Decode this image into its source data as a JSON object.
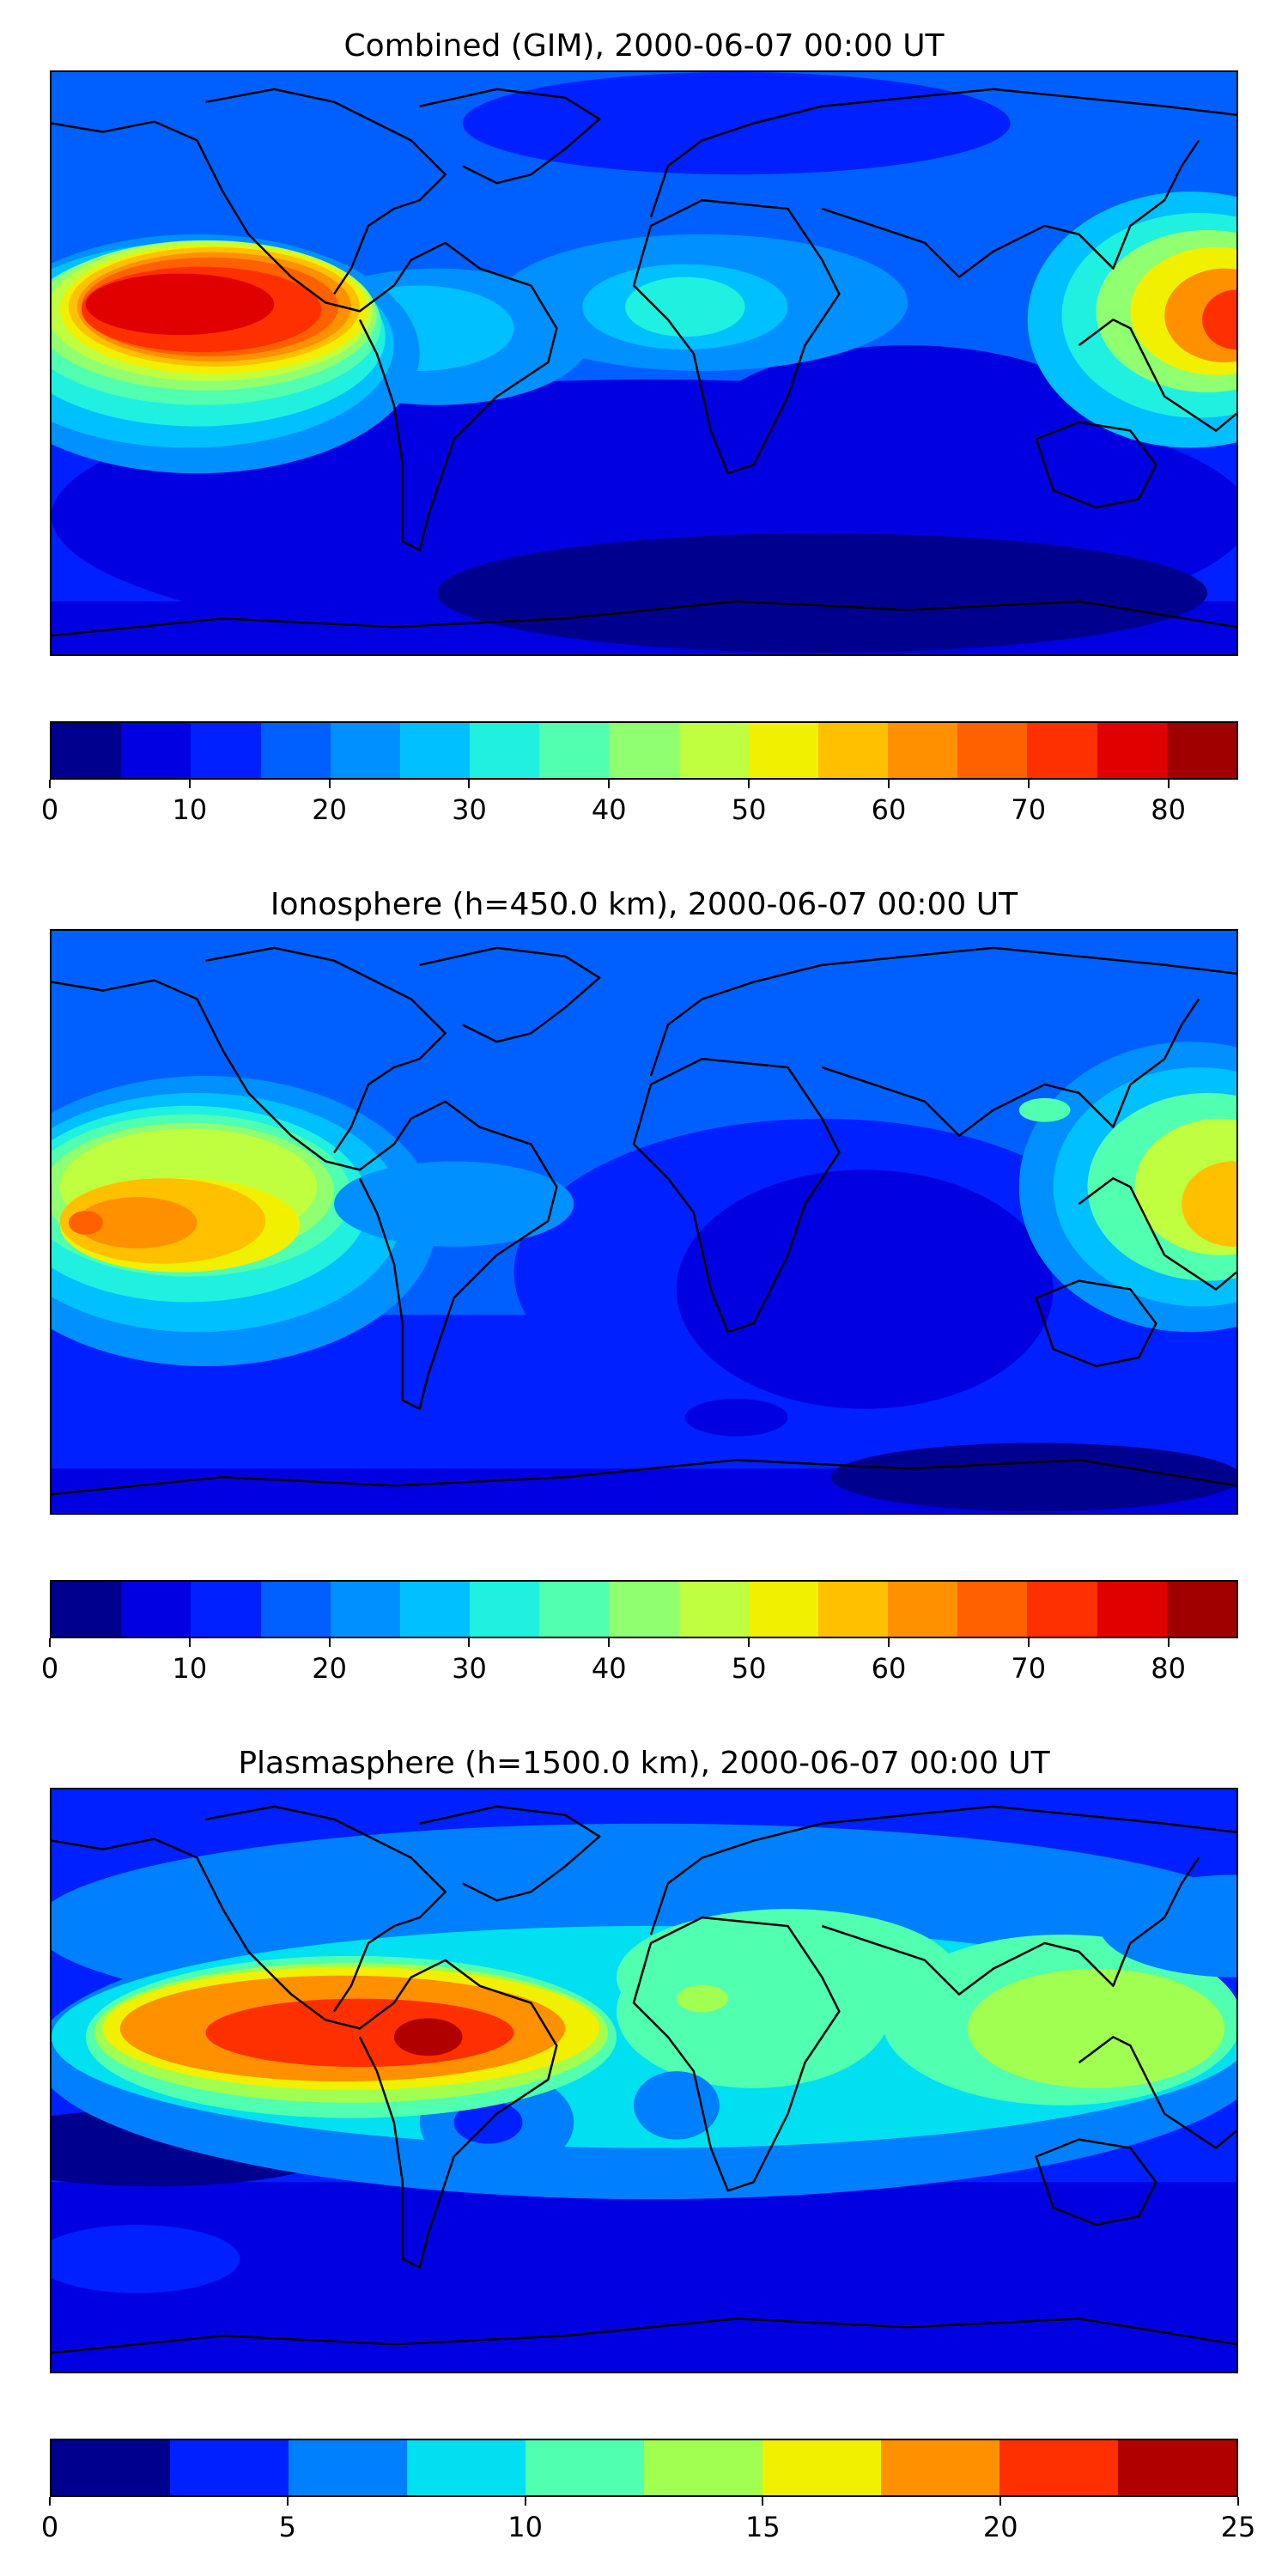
{
  "panels": [
    {
      "title": "Combined (GIM), 2000-06-07 00:00 UT",
      "colorbar": {
        "min": 0,
        "max": 85,
        "step": 5,
        "ticks": [
          "0",
          "10",
          "20",
          "30",
          "40",
          "50",
          "60",
          "70",
          "80"
        ],
        "tick_values": [
          0,
          10,
          20,
          30,
          40,
          50,
          60,
          70,
          80
        ],
        "colors": [
          "#00008f",
          "#0000e0",
          "#0020ff",
          "#0060ff",
          "#0090ff",
          "#00c0ff",
          "#20f0e0",
          "#50ffb0",
          "#90ff70",
          "#c0ff40",
          "#f0f000",
          "#ffc000",
          "#ff9000",
          "#ff6000",
          "#ff3000",
          "#e00000",
          "#a00000"
        ]
      }
    },
    {
      "title": "Ionosphere  (h=450.0 km), 2000-06-07 00:00 UT",
      "colorbar": {
        "min": 0,
        "max": 85,
        "step": 5,
        "ticks": [
          "0",
          "10",
          "20",
          "30",
          "40",
          "50",
          "60",
          "70",
          "80"
        ],
        "tick_values": [
          0,
          10,
          20,
          30,
          40,
          50,
          60,
          70,
          80
        ],
        "colors": [
          "#00008f",
          "#0000e0",
          "#0020ff",
          "#0060ff",
          "#0090ff",
          "#00c0ff",
          "#20f0e0",
          "#50ffb0",
          "#90ff70",
          "#c0ff40",
          "#f0f000",
          "#ffc000",
          "#ff9000",
          "#ff6000",
          "#ff3000",
          "#e00000",
          "#a00000"
        ]
      }
    },
    {
      "title": "Plasmasphere (h=1500.0 km), 2000-06-07 00:00 UT",
      "colorbar": {
        "min": 0,
        "max": 25,
        "step": 2.5,
        "ticks": [
          "0",
          "5",
          "10",
          "15",
          "20",
          "25"
        ],
        "tick_values": [
          0,
          5,
          10,
          15,
          20,
          25
        ],
        "colors": [
          "#00008f",
          "#0020ff",
          "#0080ff",
          "#00e0f0",
          "#50ffb0",
          "#a0ff50",
          "#f0f000",
          "#ff9000",
          "#ff3000",
          "#b00000"
        ]
      }
    }
  ]
}
